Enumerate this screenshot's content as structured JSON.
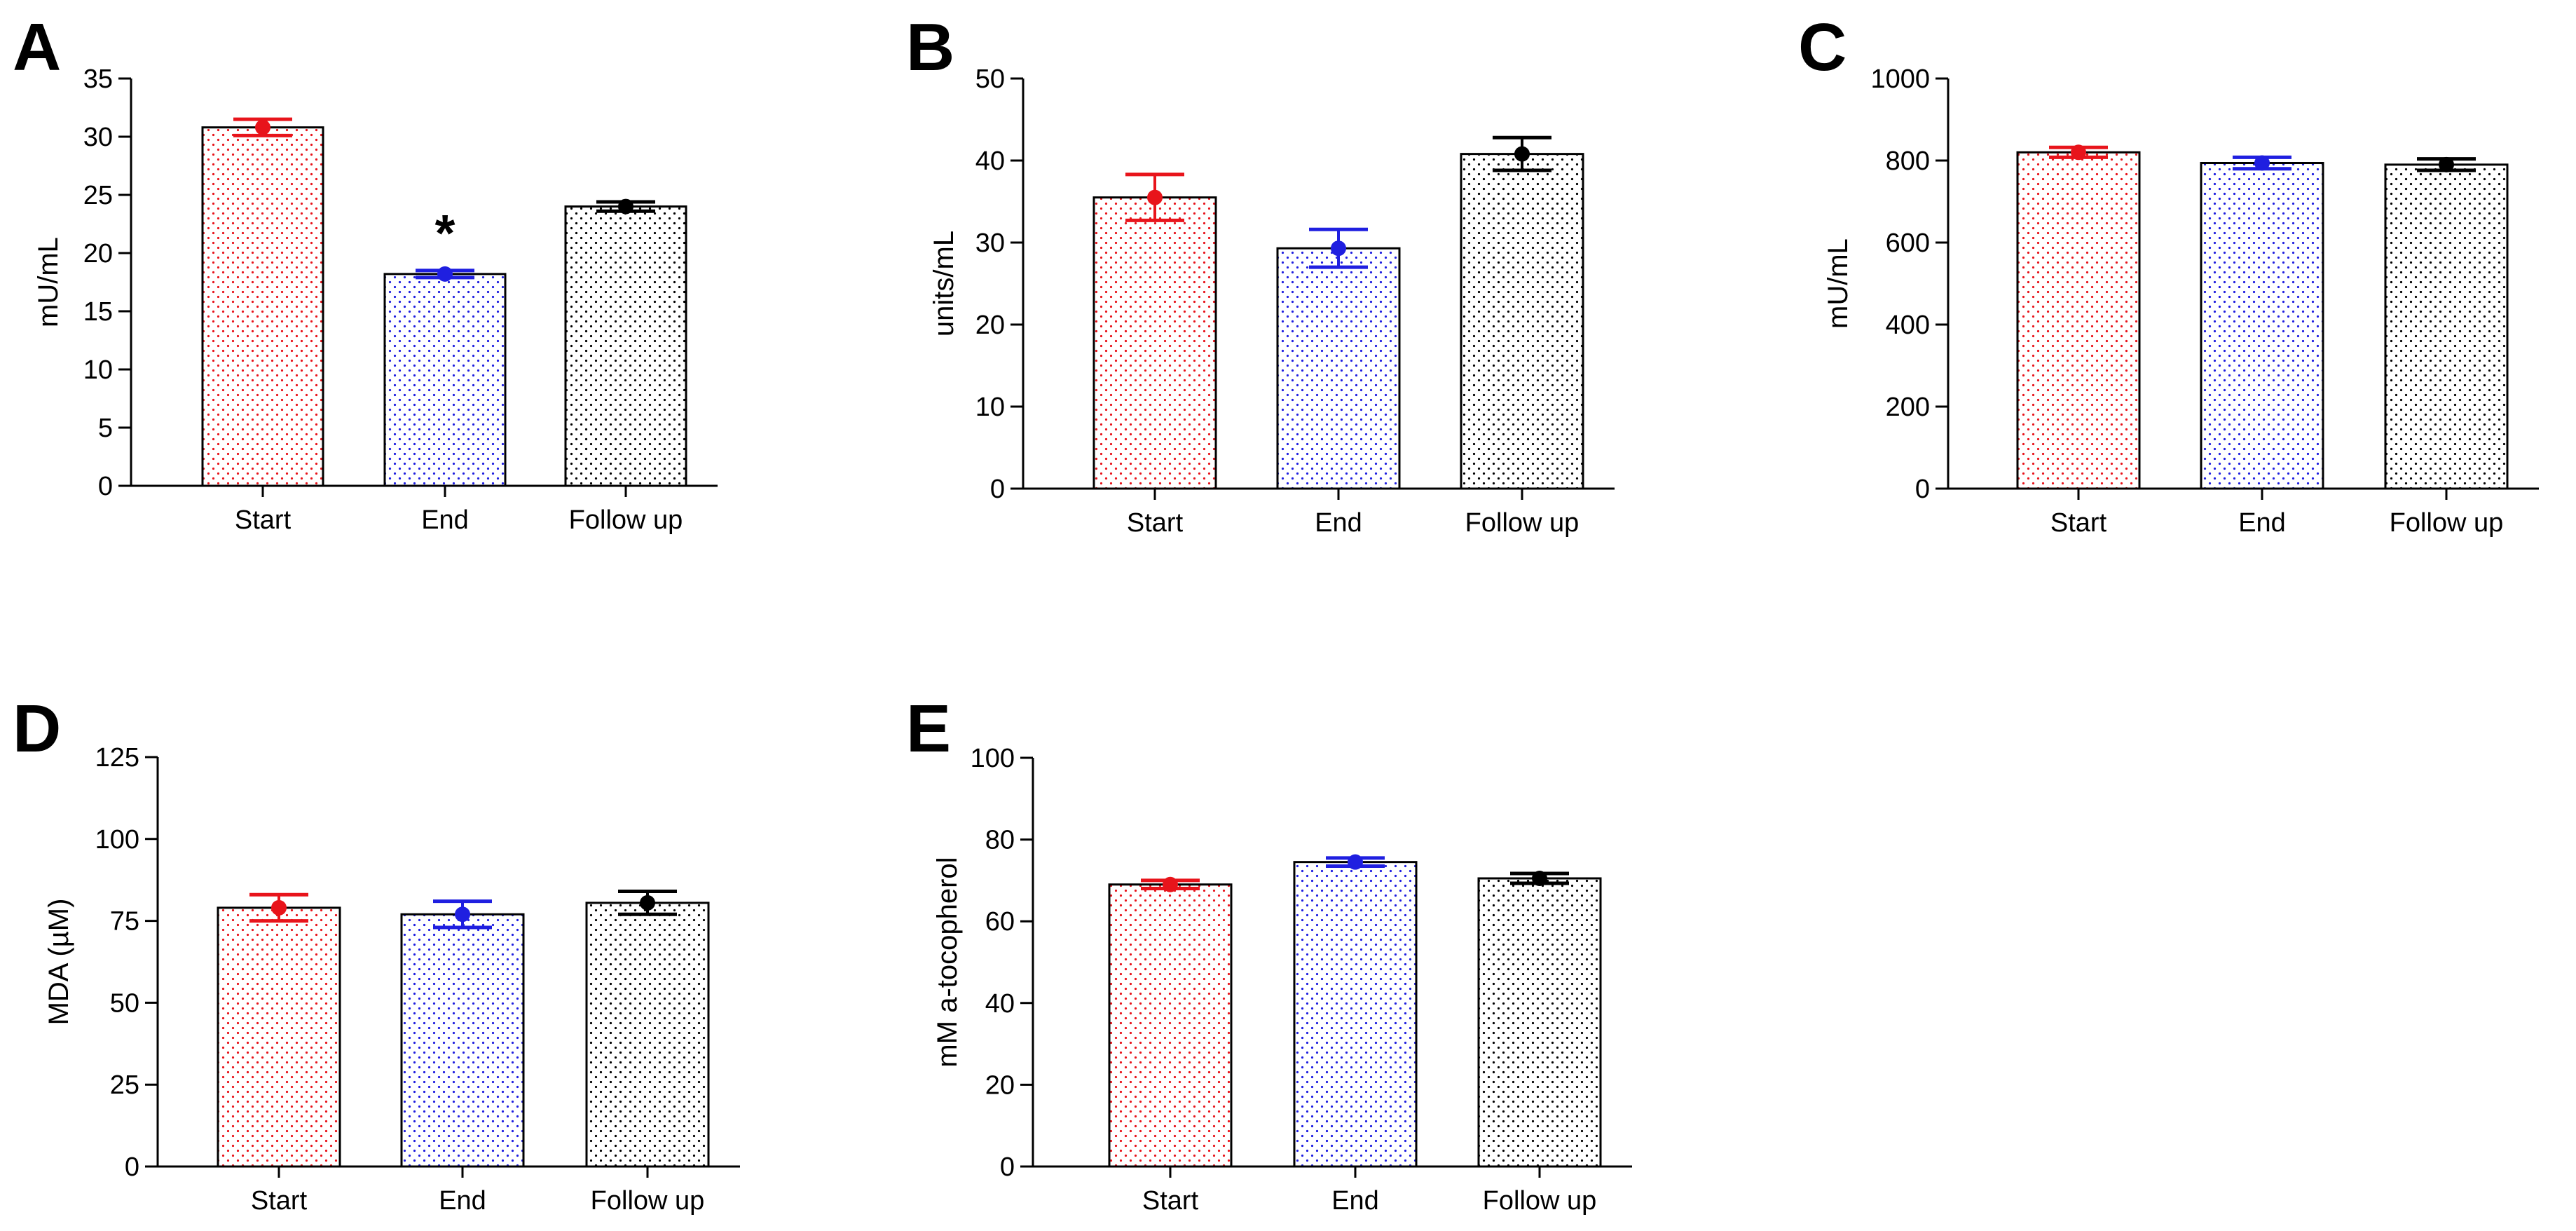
{
  "colors": {
    "Start": "#e8141b",
    "End": "#1f1fe0",
    "Follow up": "#000000"
  },
  "chart_data": [
    {
      "panel": "A",
      "type": "bar",
      "categories": [
        "Start",
        "End",
        "Follow up"
      ],
      "values": [
        30.8,
        18.2,
        24.0
      ],
      "errors": [
        0.7,
        0.3,
        0.4
      ],
      "ylabel": "mU/mL",
      "ylim": [
        0,
        35
      ],
      "yticks": [
        0,
        5,
        10,
        15,
        20,
        25,
        30,
        35
      ],
      "annotations": [
        {
          "category": "End",
          "text": "*"
        }
      ],
      "grid": false,
      "fill_pattern": "dots"
    },
    {
      "panel": "B",
      "type": "bar",
      "categories": [
        "Start",
        "End",
        "Follow up"
      ],
      "values": [
        35.5,
        29.3,
        40.8
      ],
      "errors": [
        2.8,
        2.3,
        2.0
      ],
      "ylabel": "units/mL",
      "ylim": [
        0,
        50
      ],
      "yticks": [
        0,
        10,
        20,
        30,
        40,
        50
      ],
      "grid": false,
      "fill_pattern": "dots"
    },
    {
      "panel": "C",
      "type": "bar",
      "categories": [
        "Start",
        "End",
        "Follow up"
      ],
      "values": [
        820,
        794,
        790
      ],
      "errors": [
        12,
        14,
        14
      ],
      "ylabel": "mU/mL",
      "ylim": [
        0,
        1000
      ],
      "yticks": [
        0,
        200,
        400,
        600,
        800,
        1000
      ],
      "grid": false,
      "fill_pattern": "dots"
    },
    {
      "panel": "D",
      "type": "bar",
      "categories": [
        "Start",
        "End",
        "Follow up"
      ],
      "values": [
        79,
        77,
        80.5
      ],
      "errors": [
        4,
        4,
        3.5
      ],
      "ylabel": "MDA (µM)",
      "ylim": [
        0,
        125
      ],
      "yticks": [
        0,
        25,
        50,
        75,
        100,
        125
      ],
      "grid": false,
      "fill_pattern": "dots"
    },
    {
      "panel": "E",
      "type": "bar",
      "categories": [
        "Start",
        "End",
        "Follow up"
      ],
      "values": [
        69,
        74.5,
        70.5
      ],
      "errors": [
        1.0,
        1.0,
        1.2
      ],
      "ylabel": "mM a-tocopherol",
      "ylim": [
        0,
        100
      ],
      "yticks": [
        0,
        20,
        40,
        60,
        80,
        100
      ],
      "grid": false,
      "fill_pattern": "dots"
    }
  ]
}
